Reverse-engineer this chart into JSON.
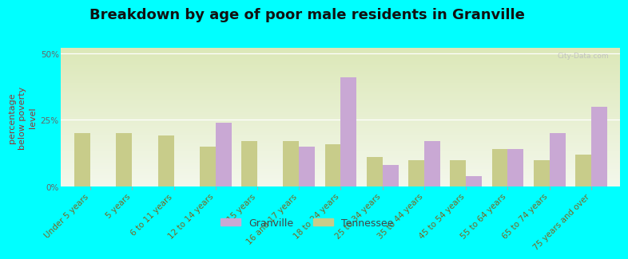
{
  "title": "Breakdown by age of poor male residents in Granville",
  "ylabel": "percentage\nbelow poverty\nlevel",
  "categories": [
    "Under 5 years",
    "5 years",
    "6 to 11 years",
    "12 to 14 years",
    "15 years",
    "16 and 17 years",
    "18 to 24 years",
    "25 to 34 years",
    "35 to 44 years",
    "45 to 54 years",
    "55 to 64 years",
    "65 to 74 years",
    "75 years and over"
  ],
  "granville": [
    0,
    0,
    0,
    24,
    0,
    15,
    41,
    8,
    17,
    4,
    14,
    20,
    30
  ],
  "tennessee": [
    20,
    20,
    19,
    15,
    17,
    17,
    16,
    11,
    10,
    10,
    14,
    10,
    12
  ],
  "granville_color": "#c9a8d4",
  "tennessee_color": "#c8cc8a",
  "background_color": "#00ffff",
  "grad_top": "#f4f8ec",
  "grad_bottom": "#dce8b8",
  "ylim": [
    0,
    52
  ],
  "yticks": [
    0,
    25,
    50
  ],
  "ytick_labels": [
    "0%",
    "25%",
    "50%"
  ],
  "bar_width": 0.38,
  "title_fontsize": 13,
  "axis_label_fontsize": 8,
  "tick_label_fontsize": 7.5,
  "legend_fontsize": 9,
  "watermark": "City-Data.com"
}
